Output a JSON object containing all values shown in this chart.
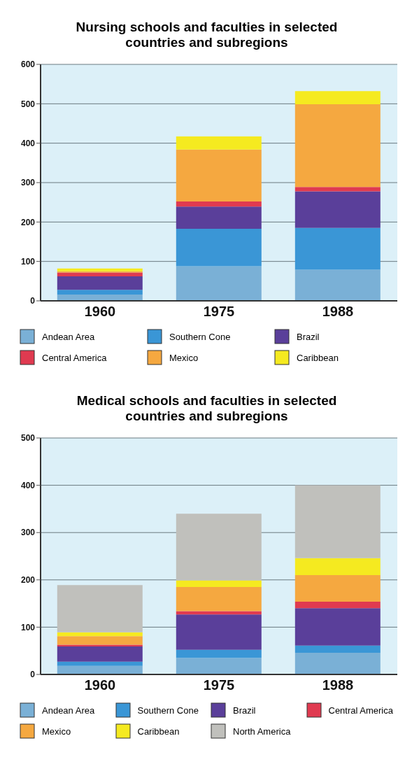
{
  "chart_data": [
    {
      "type": "bar",
      "title": "Nursing schools and faculties in selected countries and subregions",
      "categories": [
        "1960",
        "1975",
        "1988"
      ],
      "stacked": true,
      "ylim": [
        0,
        600
      ],
      "yticks": [
        0,
        100,
        200,
        300,
        400,
        500,
        600
      ],
      "grid": "y",
      "legend": "bottom",
      "series": [
        {
          "name": "Andean Area",
          "color": "#7ab0d6",
          "values": [
            16,
            88,
            79
          ]
        },
        {
          "name": "Southern Cone",
          "color": "#3a96d6",
          "values": [
            12,
            95,
            106
          ]
        },
        {
          "name": "Brazil",
          "color": "#5a3f9a",
          "values": [
            34,
            56,
            93
          ]
        },
        {
          "name": "Central America",
          "color": "#e03a50",
          "values": [
            10,
            13,
            11
          ]
        },
        {
          "name": "Mexico",
          "color": "#f5a840",
          "values": [
            3,
            132,
            210
          ]
        },
        {
          "name": "Caribbean",
          "color": "#f5ea20",
          "values": [
            7,
            33,
            33
          ]
        }
      ]
    },
    {
      "type": "bar",
      "title": "Medical schools and faculties in selected countries and subregions",
      "categories": [
        "1960",
        "1975",
        "1988"
      ],
      "stacked": true,
      "ylim": [
        0,
        500
      ],
      "yticks": [
        0,
        100,
        200,
        300,
        400,
        500
      ],
      "grid": "y",
      "legend": "bottom",
      "series": [
        {
          "name": "Andean Area",
          "color": "#7ab0d6",
          "values": [
            18,
            35,
            46
          ]
        },
        {
          "name": "Southern Cone",
          "color": "#3a96d6",
          "values": [
            9,
            17,
            15
          ]
        },
        {
          "name": "Brazil",
          "color": "#5a3f9a",
          "values": [
            32,
            75,
            79
          ]
        },
        {
          "name": "Central America",
          "color": "#e03a50",
          "values": [
            4,
            7,
            14
          ]
        },
        {
          "name": "Mexico",
          "color": "#f5a840",
          "values": [
            18,
            51,
            56
          ]
        },
        {
          "name": "Caribbean",
          "color": "#f5ea20",
          "values": [
            8,
            14,
            36
          ]
        },
        {
          "name": "North America",
          "color": "#c0c0bc",
          "values": [
            100,
            141,
            154
          ]
        }
      ]
    }
  ]
}
